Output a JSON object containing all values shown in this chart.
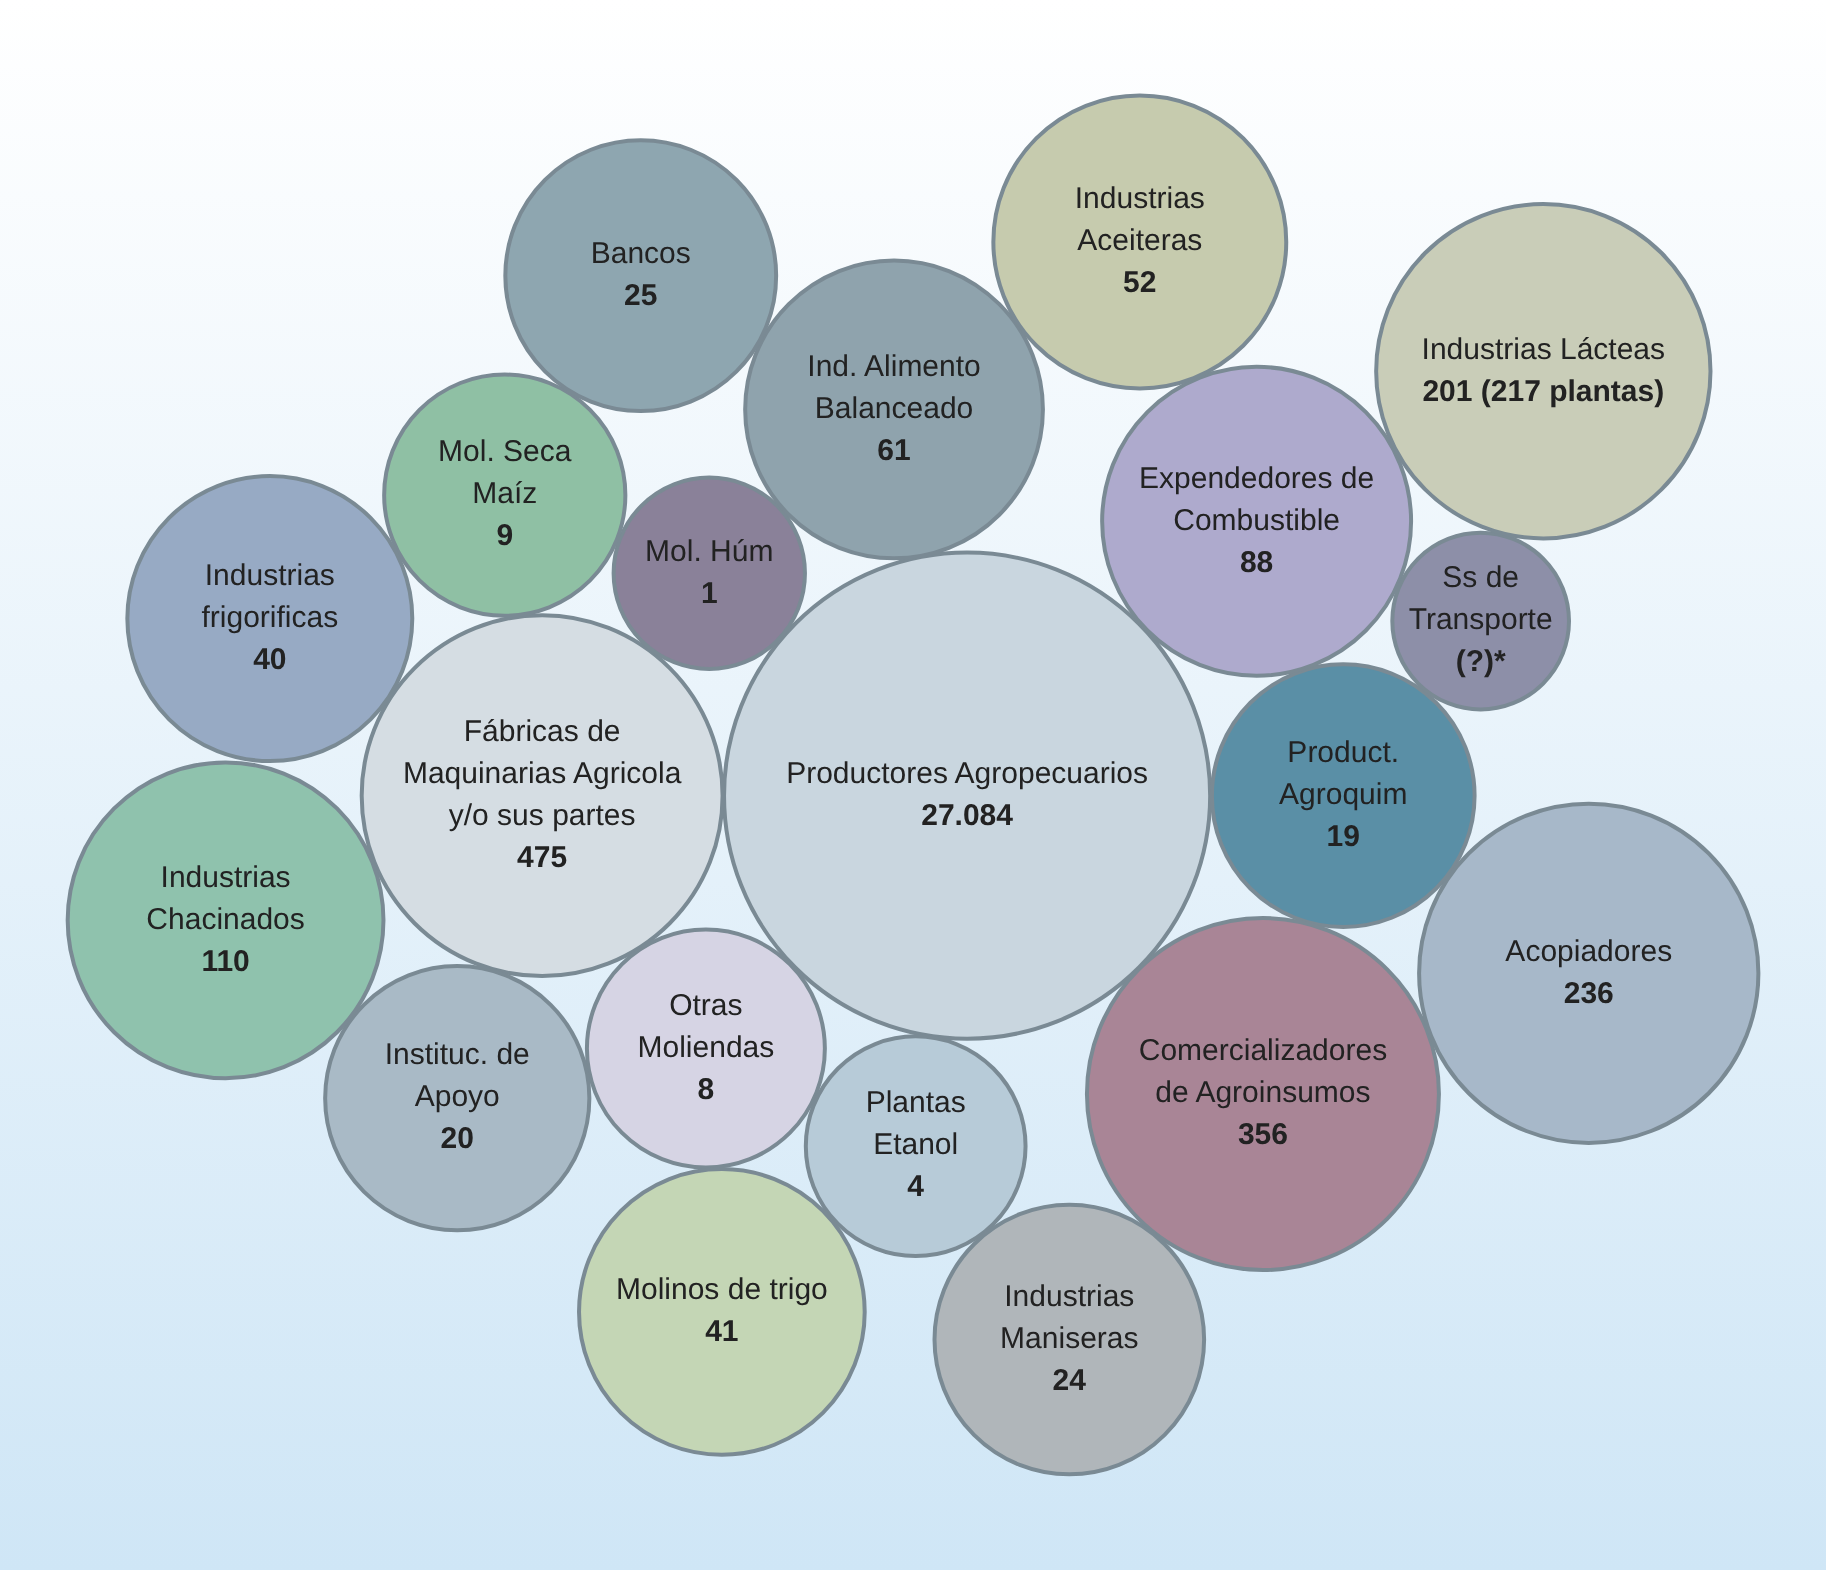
{
  "chart_data": {
    "type": "other",
    "categories": [
      "Productores Agropecuarios",
      "Product. Agroquim",
      "Fábricas de Maquinarias Agricola y/o sus partes",
      "Expendedores de Combustible",
      "Comercializadores de Agroinsumos",
      "Otras Moliendas",
      "Mol. Húm",
      "Ind. Alimento Balanceado",
      "Plantas Etanol",
      "Mol. Seca Maíz",
      "Ss de Transporte",
      "Acopiadores",
      "Instituc. de Apoyo",
      "Molinos de trigo",
      "Industrias Maniseras",
      "Industrias Aceiteras",
      "Bancos",
      "Industrias frigorificas",
      "Industrias Lácteas",
      "Industrias Chacinados"
    ],
    "values": [
      27084,
      19,
      475,
      88,
      356,
      8,
      1,
      61,
      4,
      9,
      null,
      236,
      20,
      41,
      24,
      52,
      25,
      40,
      201,
      110
    ],
    "value_labels": [
      "27.084",
      "19",
      "475",
      "88",
      "356",
      "8",
      "1",
      "61",
      "4",
      "9",
      "(?)*",
      "236",
      "20",
      "41",
      "24",
      "52",
      "25",
      "40",
      "201 (217 plantas)",
      "110"
    ],
    "colors": [
      "#c9d6df",
      "#5a8fa6",
      "#d5dde3",
      "#aeaacd",
      "#a98596",
      "#d6d4e4",
      "#8a8199",
      "#8fa3ad",
      "#b7cbd8",
      "#8fc0a4",
      "#8d8fa8",
      "#a7b8c9",
      "#a9bac6",
      "#c4d6b5",
      "#b0b6ba",
      "#c6cbae",
      "#8ea6b0",
      "#97aac4",
      "#c9cdb8",
      "#8fc2ad"
    ]
  }
}
